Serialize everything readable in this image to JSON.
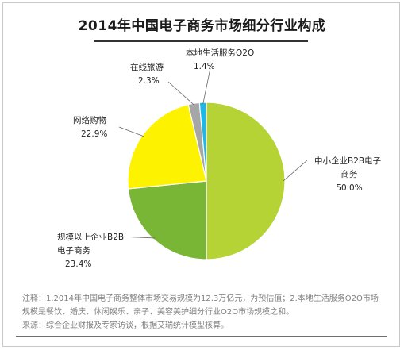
{
  "chart_data": {
    "type": "pie",
    "title": "2014年中国电子商务市场细分行业构成",
    "slices": [
      {
        "label": "中小企业B2B电子商务",
        "label_lines": [
          "中小企业B2B电子",
          "商务"
        ],
        "value": 50.0,
        "value_text": "50.0%",
        "color": "#b5d334"
      },
      {
        "label": "规模以上企业B2B电子商务",
        "label_lines": [
          "规模以上企业B2B",
          "电子商务"
        ],
        "value": 23.4,
        "value_text": "23.4%",
        "color": "#79b636"
      },
      {
        "label": "网络购物",
        "label_lines": [
          "网络购物"
        ],
        "value": 22.9,
        "value_text": "22.9%",
        "color": "#fdf200"
      },
      {
        "label": "在线旅游",
        "label_lines": [
          "在线旅游"
        ],
        "value": 2.3,
        "value_text": "2.3%",
        "color": "#a6a6a6"
      },
      {
        "label": "本地生活服务O2O",
        "label_lines": [
          "本地生活服务O2O"
        ],
        "value": 1.4,
        "value_text": "1.4%",
        "color": "#1fb8e6"
      }
    ]
  },
  "notes": {
    "line1": "注释：1.2014年中国电子商务整体市场交易规模为12.3万亿元，为预估值；2.本地生活服务O2O市场",
    "line2": "规模是餐饮、婚庆、休闲娱乐、亲子、美容美护细分行业O2O市场规模之和。",
    "line3": "来源：综合企业财报及专家访谈，根据艾瑞统计模型核算。"
  }
}
